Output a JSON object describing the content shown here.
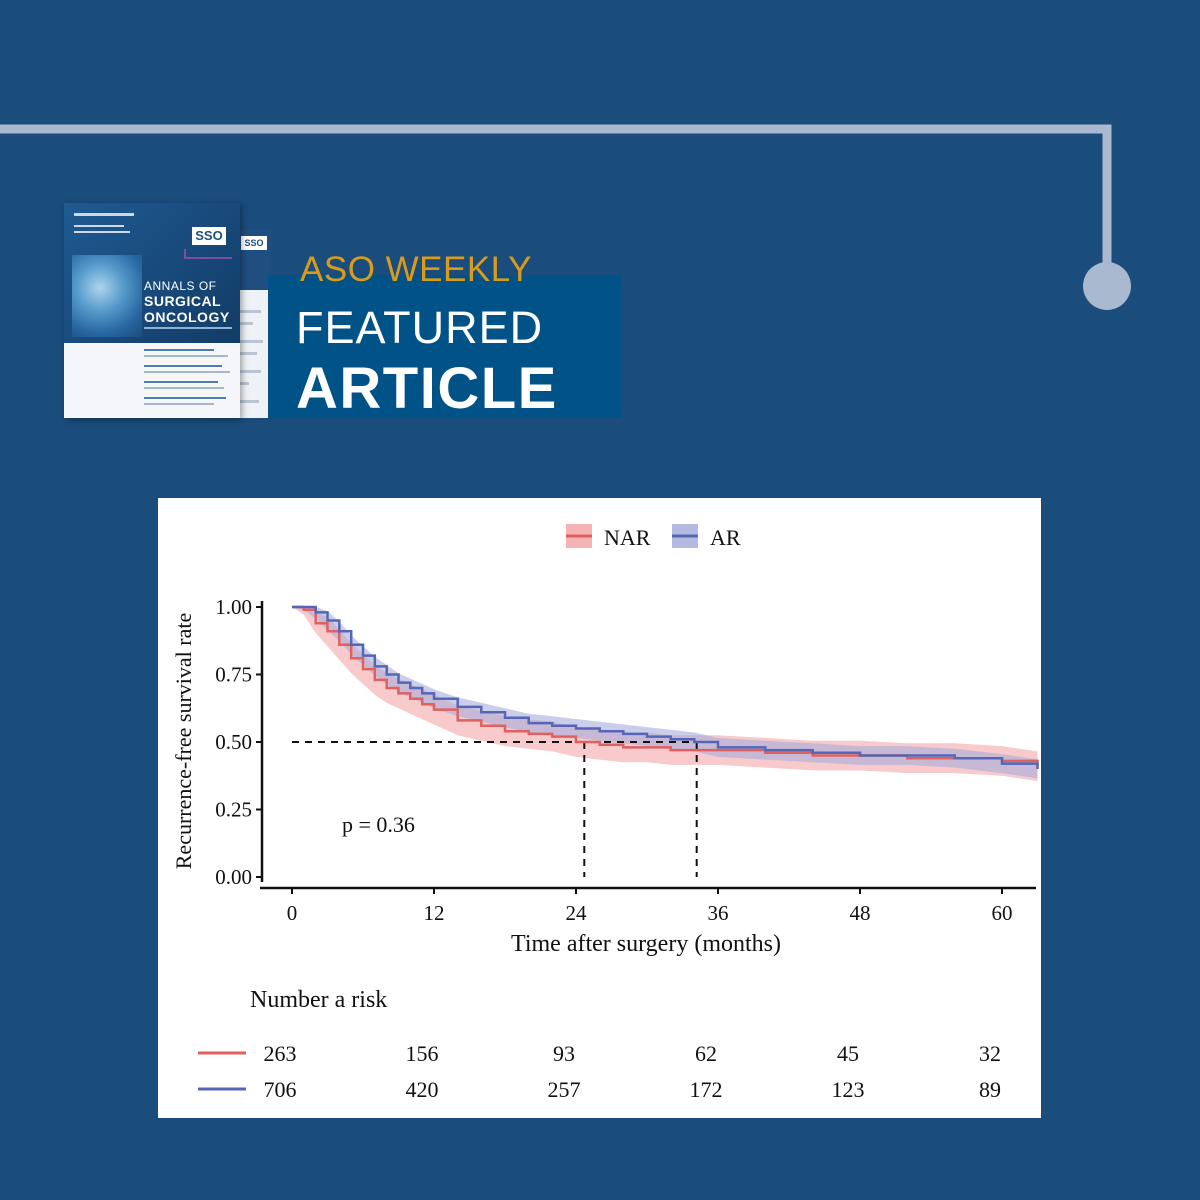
{
  "header": {
    "kicker": "ASO WEEKLY",
    "line1": "FEATURED",
    "line2": "ARTICLE"
  },
  "journal_cover": {
    "badge": "SSO",
    "title_line1": "ANNALS OF",
    "title_line2": "SURGICAL",
    "title_line3": "ONCOLOGY"
  },
  "colors": {
    "background": "#1a4c7c",
    "header_box": "#005287",
    "kicker": "#d99b1b",
    "connector_line": "#a9b9cf",
    "nar": "#e06060",
    "nar_band": "#f4a6a9",
    "ar": "#5566b4",
    "ar_band": "#a7aedd"
  },
  "chart_data": {
    "type": "line",
    "subtype": "kaplan-meier",
    "xlabel": "Time after surgery (months)",
    "ylabel": "Recurrence-free survival rate",
    "xlim": [
      0,
      63
    ],
    "ylim": [
      0,
      1
    ],
    "xticks": [
      0,
      12,
      24,
      36,
      48,
      60
    ],
    "yticks": [
      "0.00",
      "0.25",
      "0.50",
      "0.75",
      "1.00"
    ],
    "legend_position": "top",
    "annotation": "p = 0.36",
    "median_reference_y": 0.5,
    "median_survival": {
      "NAR": 24.7,
      "AR": 34.2
    },
    "series": [
      {
        "name": "NAR",
        "x": [
          0,
          1,
          2,
          3,
          4,
          5,
          6,
          7,
          8,
          9,
          10,
          11,
          12,
          14,
          16,
          18,
          20,
          22,
          24,
          26,
          28,
          30,
          32,
          34,
          36,
          40,
          44,
          48,
          52,
          56,
          60,
          63
        ],
        "y": [
          1.0,
          0.99,
          0.94,
          0.91,
          0.86,
          0.81,
          0.77,
          0.73,
          0.7,
          0.68,
          0.66,
          0.64,
          0.62,
          0.58,
          0.56,
          0.54,
          0.53,
          0.52,
          0.5,
          0.49,
          0.48,
          0.48,
          0.47,
          0.47,
          0.47,
          0.46,
          0.45,
          0.45,
          0.44,
          0.44,
          0.43,
          0.41
        ],
        "ci_halfwidth": 0.055
      },
      {
        "name": "AR",
        "x": [
          0,
          1,
          2,
          3,
          4,
          5,
          6,
          7,
          8,
          9,
          10,
          11,
          12,
          14,
          16,
          18,
          20,
          22,
          24,
          26,
          28,
          30,
          32,
          34,
          36,
          40,
          44,
          48,
          52,
          56,
          60,
          63
        ],
        "y": [
          1.0,
          1.0,
          0.98,
          0.95,
          0.91,
          0.86,
          0.82,
          0.78,
          0.75,
          0.72,
          0.7,
          0.68,
          0.66,
          0.63,
          0.61,
          0.59,
          0.57,
          0.56,
          0.55,
          0.54,
          0.53,
          0.52,
          0.51,
          0.5,
          0.48,
          0.47,
          0.46,
          0.45,
          0.45,
          0.44,
          0.42,
          0.4
        ],
        "ci_halfwidth": 0.035
      }
    ],
    "risk_table": {
      "title": "Number a risk",
      "times": [
        0,
        12,
        24,
        36,
        48,
        60
      ],
      "rows": [
        {
          "name": "NAR",
          "values": [
            "263",
            "156",
            "93",
            "62",
            "45",
            "32"
          ]
        },
        {
          "name": "AR",
          "values": [
            "706",
            "420",
            "257",
            "172",
            "123",
            "89"
          ]
        }
      ]
    }
  }
}
